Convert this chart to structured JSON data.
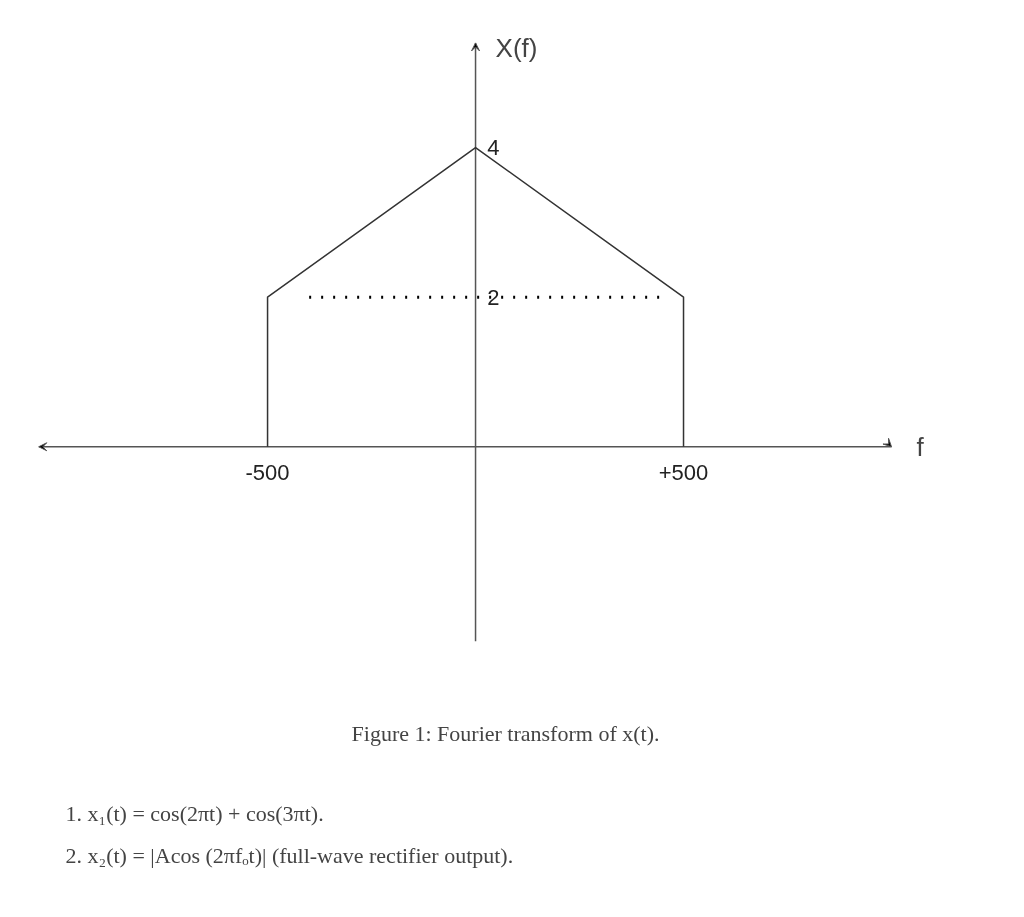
{
  "chart_data": {
    "type": "line",
    "xlabel": "f",
    "ylabel": "X(f)",
    "x": [
      -500,
      -500,
      0,
      500,
      500
    ],
    "values": [
      0,
      2,
      4,
      2,
      0
    ],
    "color": "#333333",
    "xlim": [
      -1050,
      1000
    ],
    "ylim": [
      -2.6,
      5.4
    ],
    "xticks": [
      {
        "value": -500,
        "label": "-500"
      },
      {
        "value": 500,
        "label": "+500"
      }
    ],
    "yticks": [
      2,
      4
    ],
    "grid": false,
    "marker": "none",
    "line_style": "solid",
    "ref_lines": [
      {
        "axis": "y",
        "value": 2,
        "label": null,
        "line_style": "dotted",
        "color": "#000000"
      }
    ],
    "annotations": [
      "Figure 1: Fourier transform of x(t).",
      "1. x₁(t) = cos(2πt) + cos(3πt).",
      "2. x₂(t) = |Acos (2πfₒt)| (full-wave rectifier output)."
    ]
  }
}
